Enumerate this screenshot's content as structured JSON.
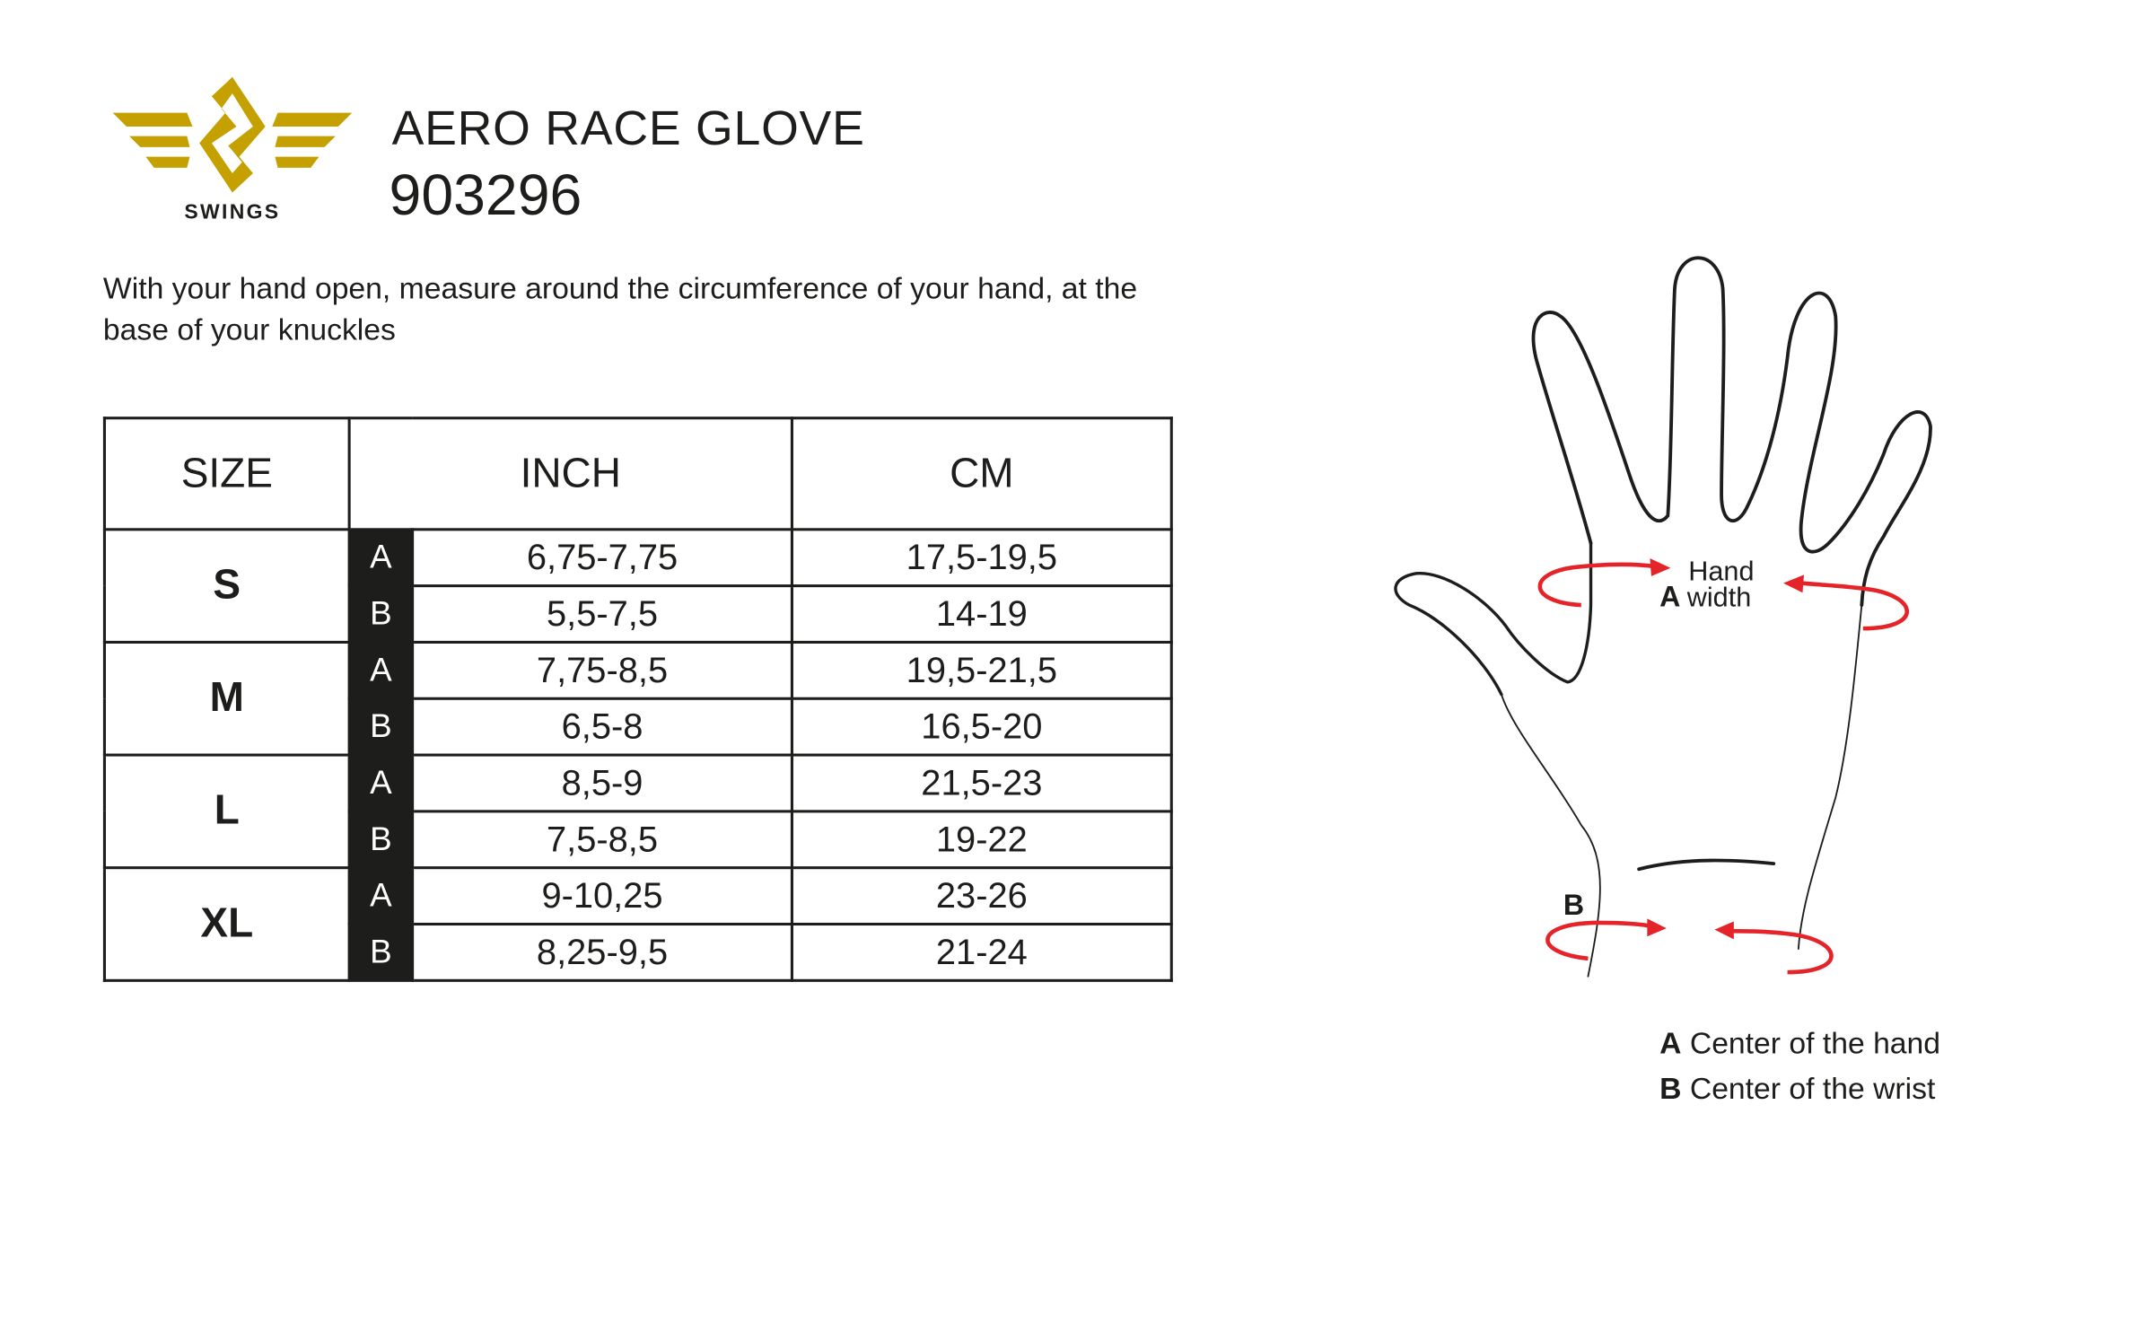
{
  "brand": {
    "logo_text": "SWINGS",
    "color": "#c4a000"
  },
  "header": {
    "title": "AERO RACE GLOVE",
    "code": "903296"
  },
  "description": "With your hand open, measure around the circumference of your hand, at the base of your knuckles",
  "table": {
    "headers": [
      "SIZE",
      "INCH",
      "CM"
    ],
    "rows": [
      {
        "size": "S",
        "measures": [
          {
            "key": "A",
            "inch": "6,75-7,75",
            "cm": "17,5-19,5"
          },
          {
            "key": "B",
            "inch": "5,5-7,5",
            "cm": "14-19"
          }
        ]
      },
      {
        "size": "M",
        "measures": [
          {
            "key": "A",
            "inch": "7,75-8,5",
            "cm": "19,5-21,5"
          },
          {
            "key": "B",
            "inch": "6,5-8",
            "cm": "16,5-20"
          }
        ]
      },
      {
        "size": "L",
        "measures": [
          {
            "key": "A",
            "inch": "8,5-9",
            "cm": "21,5-23"
          },
          {
            "key": "B",
            "inch": "7,5-8,5",
            "cm": "19-22"
          }
        ]
      },
      {
        "size": "XL",
        "measures": [
          {
            "key": "A",
            "inch": "9-10,25",
            "cm": "23-26"
          },
          {
            "key": "B",
            "inch": "8,25-9,5",
            "cm": "21-24"
          }
        ]
      }
    ]
  },
  "diagram": {
    "label_a_letter": "A",
    "label_a_line1": "Hand",
    "label_a_line2": "width",
    "label_b_letter": "B",
    "arrow_color": "#e5242a"
  },
  "legend": [
    {
      "key": "A",
      "text": "Center of the hand"
    },
    {
      "key": "B",
      "text": "Center of the wrist"
    }
  ]
}
